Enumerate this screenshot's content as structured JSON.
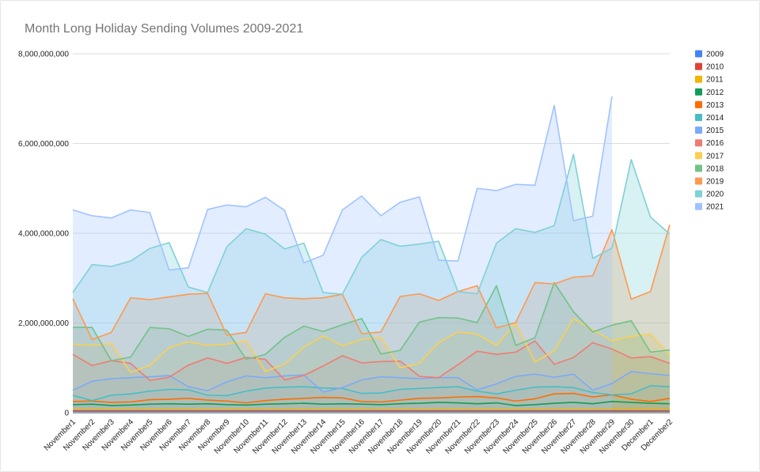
{
  "chart_data": {
    "type": "area",
    "title": "Month Long Holiday Sending Volumes 2009-2021",
    "xlabel": "",
    "ylabel": "",
    "ylim": [
      0,
      8000000000
    ],
    "y_ticks": [
      0,
      2000000000,
      4000000000,
      6000000000,
      8000000000
    ],
    "y_tick_labels": [
      "0",
      "2,000,000,000",
      "4,000,000,000",
      "6,000,000,000",
      "8,000,000,000"
    ],
    "grid": true,
    "legend_position": "right",
    "categories": [
      "November1",
      "November2",
      "November3",
      "November4",
      "November5",
      "November6",
      "November7",
      "November8",
      "November9",
      "November10",
      "November11",
      "November12",
      "November13",
      "November14",
      "November15",
      "November16",
      "November17",
      "November18",
      "November19",
      "November20",
      "November21",
      "November22",
      "November23",
      "November24",
      "November25",
      "November26",
      "November27",
      "November28",
      "November29",
      "November30",
      "December1",
      "December2"
    ],
    "series": [
      {
        "name": "2009",
        "color": "#4285f4",
        "values": [
          30000000,
          30000000,
          30000000,
          30000000,
          30000000,
          30000000,
          30000000,
          30000000,
          30000000,
          30000000,
          30000000,
          30000000,
          30000000,
          30000000,
          30000000,
          30000000,
          30000000,
          30000000,
          30000000,
          30000000,
          30000000,
          30000000,
          30000000,
          30000000,
          30000000,
          30000000,
          30000000,
          30000000,
          30000000,
          30000000,
          30000000,
          30000000
        ]
      },
      {
        "name": "2010",
        "color": "#db4437",
        "values": [
          50000000,
          50000000,
          50000000,
          50000000,
          50000000,
          50000000,
          50000000,
          50000000,
          50000000,
          50000000,
          50000000,
          50000000,
          50000000,
          50000000,
          50000000,
          50000000,
          50000000,
          50000000,
          50000000,
          50000000,
          50000000,
          50000000,
          50000000,
          50000000,
          50000000,
          50000000,
          50000000,
          50000000,
          50000000,
          50000000,
          50000000,
          50000000
        ]
      },
      {
        "name": "2011",
        "color": "#f4b400",
        "values": [
          70000000,
          70000000,
          70000000,
          70000000,
          70000000,
          70000000,
          70000000,
          70000000,
          70000000,
          70000000,
          70000000,
          70000000,
          70000000,
          70000000,
          70000000,
          70000000,
          70000000,
          70000000,
          70000000,
          70000000,
          70000000,
          70000000,
          70000000,
          70000000,
          70000000,
          70000000,
          70000000,
          70000000,
          70000000,
          70000000,
          70000000,
          70000000
        ]
      },
      {
        "name": "2012",
        "color": "#0f9d58",
        "values": [
          180000000,
          190000000,
          160000000,
          170000000,
          190000000,
          200000000,
          190000000,
          200000000,
          180000000,
          170000000,
          190000000,
          200000000,
          210000000,
          190000000,
          200000000,
          190000000,
          180000000,
          200000000,
          210000000,
          230000000,
          220000000,
          200000000,
          220000000,
          160000000,
          180000000,
          210000000,
          230000000,
          200000000,
          250000000,
          230000000,
          210000000,
          200000000
        ]
      },
      {
        "name": "2013",
        "color": "#ff6d01",
        "values": [
          250000000,
          260000000,
          230000000,
          240000000,
          290000000,
          300000000,
          320000000,
          280000000,
          260000000,
          220000000,
          270000000,
          300000000,
          320000000,
          340000000,
          330000000,
          250000000,
          240000000,
          280000000,
          320000000,
          330000000,
          350000000,
          360000000,
          330000000,
          260000000,
          310000000,
          420000000,
          430000000,
          350000000,
          400000000,
          300000000,
          250000000,
          320000000
        ]
      },
      {
        "name": "2014",
        "color": "#46bdc6",
        "values": [
          390000000,
          270000000,
          390000000,
          420000000,
          480000000,
          520000000,
          510000000,
          390000000,
          380000000,
          480000000,
          550000000,
          570000000,
          580000000,
          550000000,
          540000000,
          430000000,
          440000000,
          520000000,
          540000000,
          560000000,
          580000000,
          480000000,
          420000000,
          500000000,
          570000000,
          580000000,
          560000000,
          450000000,
          400000000,
          420000000,
          600000000,
          580000000
        ]
      },
      {
        "name": "2015",
        "color": "#7baaf7",
        "values": [
          500000000,
          700000000,
          760000000,
          780000000,
          800000000,
          830000000,
          580000000,
          490000000,
          690000000,
          820000000,
          780000000,
          820000000,
          840000000,
          460000000,
          560000000,
          730000000,
          800000000,
          780000000,
          760000000,
          780000000,
          780000000,
          510000000,
          640000000,
          810000000,
          860000000,
          790000000,
          860000000,
          500000000,
          650000000,
          920000000,
          870000000,
          830000000
        ]
      },
      {
        "name": "2016",
        "color": "#f07b72",
        "values": [
          1300000000,
          1050000000,
          1160000000,
          1100000000,
          720000000,
          790000000,
          1060000000,
          1220000000,
          1100000000,
          1230000000,
          1190000000,
          730000000,
          830000000,
          1040000000,
          1270000000,
          1110000000,
          1140000000,
          1150000000,
          810000000,
          780000000,
          1070000000,
          1370000000,
          1300000000,
          1350000000,
          1600000000,
          1080000000,
          1230000000,
          1560000000,
          1420000000,
          1220000000,
          1250000000,
          1100000000
        ]
      },
      {
        "name": "2017",
        "color": "#fcd04f",
        "values": [
          1530000000,
          1500000000,
          1540000000,
          900000000,
          1050000000,
          1450000000,
          1580000000,
          1500000000,
          1530000000,
          1600000000,
          920000000,
          1080000000,
          1460000000,
          1710000000,
          1490000000,
          1630000000,
          1680000000,
          1000000000,
          1100000000,
          1560000000,
          1800000000,
          1750000000,
          1500000000,
          1990000000,
          1130000000,
          1380000000,
          2100000000,
          1850000000,
          1600000000,
          1700000000,
          1760000000,
          1280000000
        ]
      },
      {
        "name": "2018",
        "color": "#71c287",
        "values": [
          1900000000,
          1900000000,
          1160000000,
          1240000000,
          1900000000,
          1870000000,
          1700000000,
          1860000000,
          1840000000,
          1190000000,
          1300000000,
          1680000000,
          1930000000,
          1810000000,
          1960000000,
          2100000000,
          1310000000,
          1390000000,
          2020000000,
          2120000000,
          2110000000,
          2010000000,
          2830000000,
          1500000000,
          1670000000,
          2900000000,
          2250000000,
          1800000000,
          1950000000,
          2050000000,
          1350000000,
          1400000000
        ]
      },
      {
        "name": "2019",
        "color": "#ff994d",
        "values": [
          2540000000,
          1630000000,
          1790000000,
          2560000000,
          2520000000,
          2580000000,
          2640000000,
          2660000000,
          1730000000,
          1790000000,
          2650000000,
          2560000000,
          2540000000,
          2560000000,
          2640000000,
          1760000000,
          1800000000,
          2590000000,
          2650000000,
          2500000000,
          2700000000,
          2830000000,
          1890000000,
          2010000000,
          2900000000,
          2870000000,
          3020000000,
          3050000000,
          4080000000,
          2530000000,
          2700000000,
          4190000000
        ]
      },
      {
        "name": "2020",
        "color": "#7ed1d7",
        "values": [
          2680000000,
          3300000000,
          3260000000,
          3380000000,
          3660000000,
          3790000000,
          2800000000,
          2680000000,
          3700000000,
          4100000000,
          3980000000,
          3650000000,
          3780000000,
          2680000000,
          2640000000,
          3460000000,
          3860000000,
          3710000000,
          3760000000,
          3820000000,
          2700000000,
          2650000000,
          3780000000,
          4100000000,
          4020000000,
          4170000000,
          5760000000,
          3440000000,
          3670000000,
          5640000000,
          4360000000,
          3980000000
        ]
      },
      {
        "name": "2021",
        "color": "#a0c3ff",
        "values": [
          4520000000,
          4390000000,
          4340000000,
          4520000000,
          4460000000,
          3180000000,
          3230000000,
          4530000000,
          4630000000,
          4590000000,
          4800000000,
          4510000000,
          3340000000,
          3510000000,
          4520000000,
          4830000000,
          4390000000,
          4690000000,
          4810000000,
          3400000000,
          3380000000,
          5000000000,
          4950000000,
          5090000000,
          5070000000,
          6850000000,
          4280000000,
          4380000000,
          7050000000,
          null,
          null,
          null
        ]
      }
    ]
  }
}
